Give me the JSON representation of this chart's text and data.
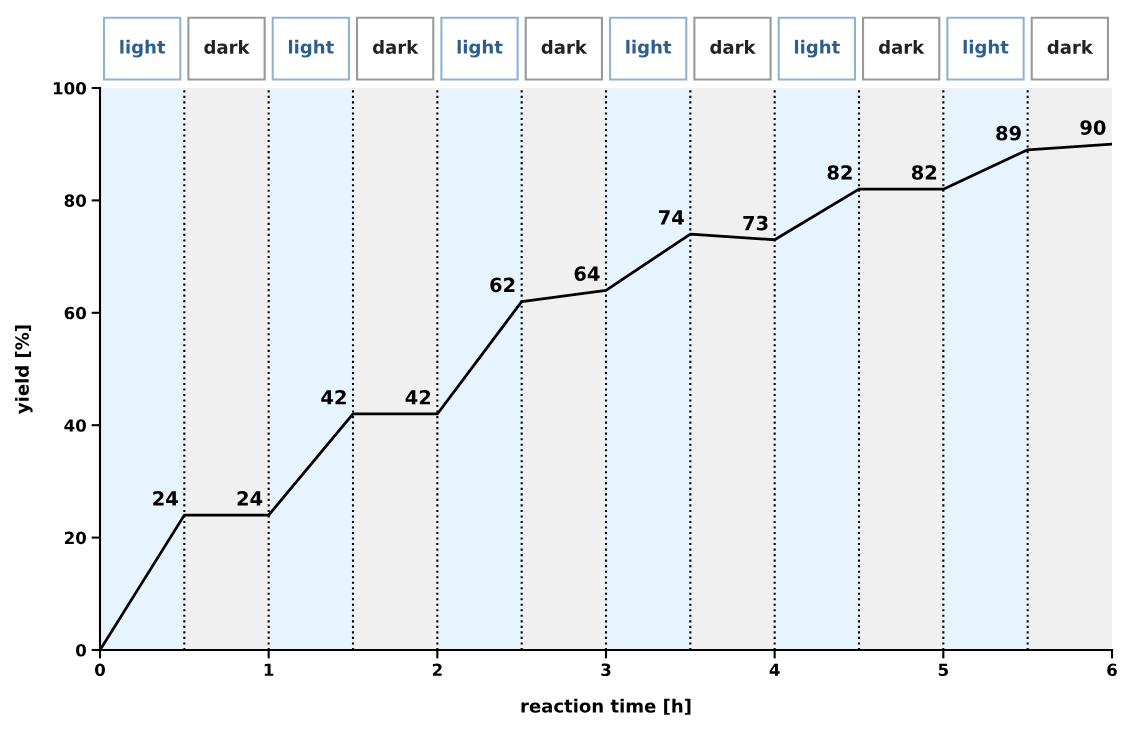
{
  "chart_data": {
    "type": "line",
    "xlabel": "reaction time [h]",
    "ylabel": "yield [%]",
    "x": [
      0,
      0.5,
      1,
      1.5,
      2,
      2.5,
      3,
      3.5,
      4,
      4.5,
      5,
      5.5,
      6
    ],
    "series": [
      {
        "color": "#000000",
        "values": [
          0,
          24,
          24,
          42,
          42,
          62,
          64,
          74,
          73,
          82,
          82,
          89,
          90
        ],
        "value_labels": [
          null,
          "24",
          "24",
          "42",
          "42",
          "62",
          "64",
          "74",
          "73",
          "82",
          "82",
          "89",
          "90"
        ]
      }
    ],
    "xlim": [
      0,
      6
    ],
    "ylim": [
      0,
      100
    ],
    "xticks": [
      0,
      1,
      2,
      3,
      4,
      5,
      6
    ],
    "yticks": [
      0,
      20,
      40,
      60,
      80,
      100
    ],
    "grid": false,
    "marker": "none",
    "line_style": "solid",
    "bands": [
      {
        "axis": "x",
        "from": 0,
        "to": 0.5,
        "label": "light",
        "color": "#e8f4fd"
      },
      {
        "axis": "x",
        "from": 0.5,
        "to": 1,
        "label": "dark",
        "color": "#f0f0f0"
      },
      {
        "axis": "x",
        "from": 1,
        "to": 1.5,
        "label": "light",
        "color": "#e8f4fd"
      },
      {
        "axis": "x",
        "from": 1.5,
        "to": 2,
        "label": "dark",
        "color": "#f0f0f0"
      },
      {
        "axis": "x",
        "from": 2,
        "to": 2.5,
        "label": "light",
        "color": "#e8f4fd"
      },
      {
        "axis": "x",
        "from": 2.5,
        "to": 3,
        "label": "dark",
        "color": "#f0f0f0"
      },
      {
        "axis": "x",
        "from": 3,
        "to": 3.5,
        "label": "light",
        "color": "#e8f4fd"
      },
      {
        "axis": "x",
        "from": 3.5,
        "to": 4,
        "label": "dark",
        "color": "#f0f0f0"
      },
      {
        "axis": "x",
        "from": 4,
        "to": 4.5,
        "label": "light",
        "color": "#e8f4fd"
      },
      {
        "axis": "x",
        "from": 4.5,
        "to": 5,
        "label": "dark",
        "color": "#f0f0f0"
      },
      {
        "axis": "x",
        "from": 5,
        "to": 5.5,
        "label": "light",
        "color": "#e8f4fd"
      },
      {
        "axis": "x",
        "from": 5.5,
        "to": 6,
        "label": "dark",
        "color": "#f0f0f0"
      }
    ],
    "ref_lines": [
      {
        "axis": "x",
        "value": 0.5,
        "line_style": "dotted",
        "color": "#000000"
      },
      {
        "axis": "x",
        "value": 1,
        "line_style": "dotted",
        "color": "#000000"
      },
      {
        "axis": "x",
        "value": 1.5,
        "line_style": "dotted",
        "color": "#000000"
      },
      {
        "axis": "x",
        "value": 2,
        "line_style": "dotted",
        "color": "#000000"
      },
      {
        "axis": "x",
        "value": 2.5,
        "line_style": "dotted",
        "color": "#000000"
      },
      {
        "axis": "x",
        "value": 3,
        "line_style": "dotted",
        "color": "#000000"
      },
      {
        "axis": "x",
        "value": 3.5,
        "line_style": "dotted",
        "color": "#000000"
      },
      {
        "axis": "x",
        "value": 4,
        "line_style": "dotted",
        "color": "#000000"
      },
      {
        "axis": "x",
        "value": 4.5,
        "line_style": "dotted",
        "color": "#000000"
      },
      {
        "axis": "x",
        "value": 5,
        "line_style": "dotted",
        "color": "#000000"
      },
      {
        "axis": "x",
        "value": 5.5,
        "line_style": "dotted",
        "color": "#000000"
      }
    ]
  }
}
